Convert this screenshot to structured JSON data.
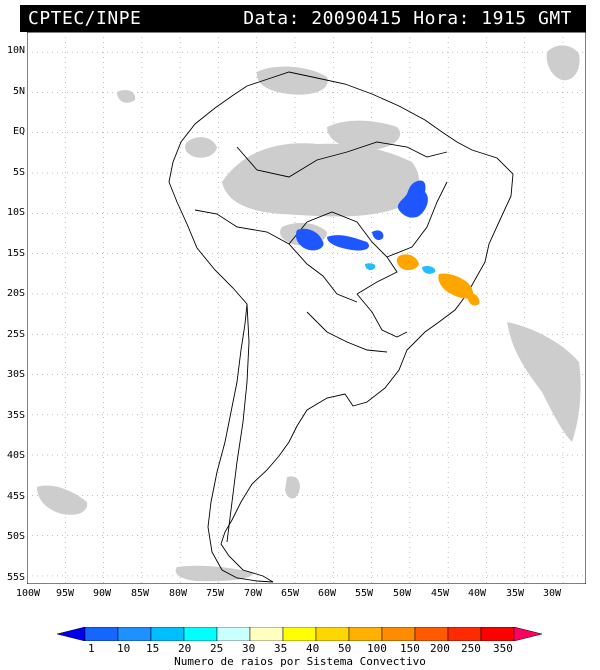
{
  "header": {
    "source": "CPTEC/INPE",
    "datetime": "Data: 20090415 Hora: 1915 GMT"
  },
  "map": {
    "region": "South America",
    "lat_labels": [
      "10N",
      "5N",
      "EQ",
      "5S",
      "10S",
      "15S",
      "20S",
      "25S",
      "30S",
      "35S",
      "40S",
      "45S",
      "50S",
      "55S"
    ],
    "lon_labels": [
      "100W",
      "95W",
      "90W",
      "85W",
      "80W",
      "75W",
      "70W",
      "65W",
      "60W",
      "55W",
      "50W",
      "45W",
      "40W",
      "35W",
      "30W"
    ],
    "extent": {
      "lon_min": -100,
      "lon_max": -27,
      "lat_min": -56,
      "lat_max": 12.5
    },
    "gridlines": true
  },
  "legend": {
    "caption": "Numero de raios por Sistema Convectivo",
    "values": [
      "1",
      "10",
      "15",
      "20",
      "25",
      "30",
      "35",
      "40",
      "50",
      "100",
      "150",
      "200",
      "250",
      "350"
    ],
    "colors": [
      "#0000ee",
      "#1565ff",
      "#1e90ff",
      "#00bfff",
      "#00ffff",
      "#c8ffff",
      "#ffffc0",
      "#ffff00",
      "#ffd700",
      "#ffb000",
      "#ff8c00",
      "#ff5a00",
      "#ff2a00",
      "#ff0000",
      "#ff0060"
    ]
  }
}
